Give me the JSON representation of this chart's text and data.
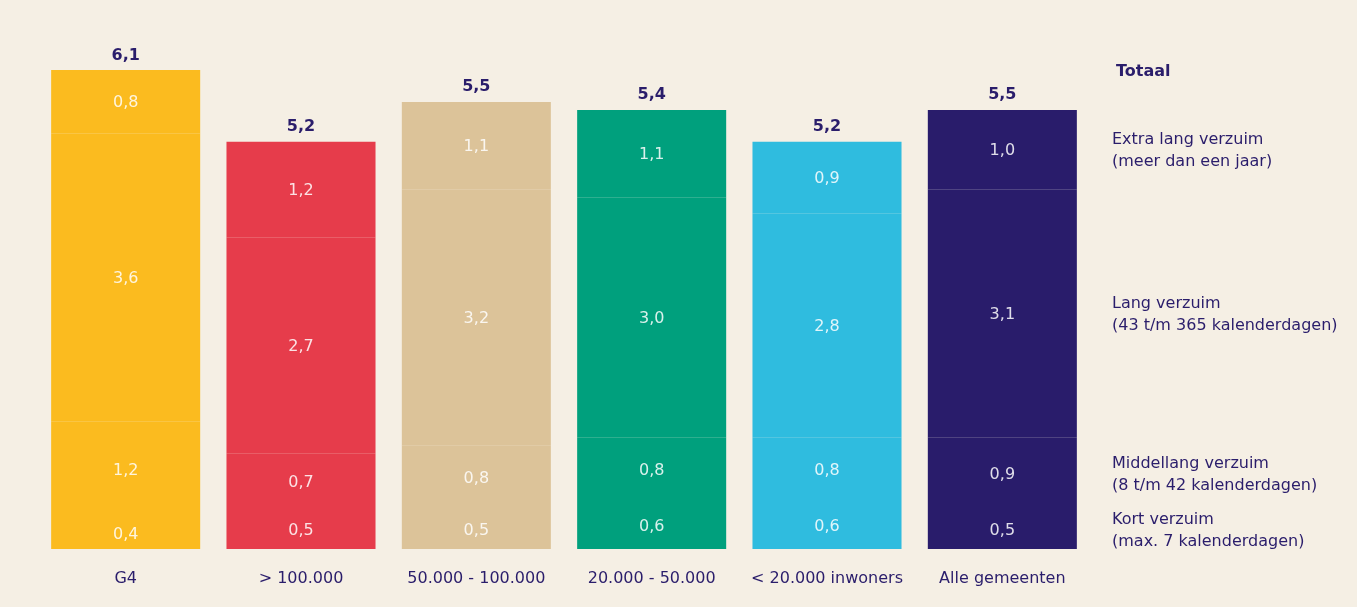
{
  "chart_data": {
    "type": "bar",
    "stacked": true,
    "categories": [
      "G4",
      "> 100.000",
      "50.000 - 100.000",
      "20.000 - 50.000",
      "< 20.000 inwoners",
      "Alle gemeenten"
    ],
    "series": [
      {
        "name": "Kort verzuim\n(max. 7 kalenderdagen)",
        "colors": [
          "#fbbb1f",
          "#e63c4b",
          "#dcc399",
          "#00a07d",
          "#2fbcdf",
          "#291c6b"
        ],
        "values": [
          0.4,
          0.5,
          0.5,
          0.6,
          0.6,
          0.5
        ],
        "value_labels": [
          "0,4",
          "0,5",
          "0,5",
          "0,6",
          "0,6",
          "0,5"
        ]
      },
      {
        "name": "Middellang verzuim\n(8 t/m 42 kalenderdagen)",
        "colors": [
          "#fbbb1f",
          "#e63c4b",
          "#dcc399",
          "#00a07d",
          "#2fbcdf",
          "#291c6b"
        ],
        "values": [
          1.2,
          0.7,
          0.8,
          0.8,
          0.8,
          0.9
        ],
        "value_labels": [
          "1,2",
          "0,7",
          "0,8",
          "0,8",
          "0,8",
          "0,9"
        ]
      },
      {
        "name": "Lang verzuim\n(43 t/m 365 kalenderdagen)",
        "colors": [
          "#fbbb1f",
          "#e63c4b",
          "#dcc399",
          "#00a07d",
          "#2fbcdf",
          "#291c6b"
        ],
        "values": [
          3.6,
          2.7,
          3.2,
          3.0,
          2.8,
          3.1
        ],
        "value_labels": [
          "3,6",
          "2,7",
          "3,2",
          "3,0",
          "2,8",
          "3,1"
        ]
      },
      {
        "name": "Extra lang verzuim\n(meer dan een jaar)",
        "colors": [
          "#fbbb1f",
          "#e63c4b",
          "#dcc399",
          "#00a07d",
          "#2fbcdf",
          "#291c6b"
        ],
        "values": [
          0.8,
          1.2,
          1.1,
          1.1,
          0.9,
          1.0
        ],
        "value_labels": [
          "0,8",
          "1,2",
          "1,1",
          "1,1",
          "0,9",
          "1,0"
        ]
      }
    ],
    "totals": [
      "6,1",
      "5,2",
      "5,5",
      "5,4",
      "5,2",
      "5,5"
    ],
    "annotations": [
      "Totaal"
    ],
    "legend": false
  }
}
